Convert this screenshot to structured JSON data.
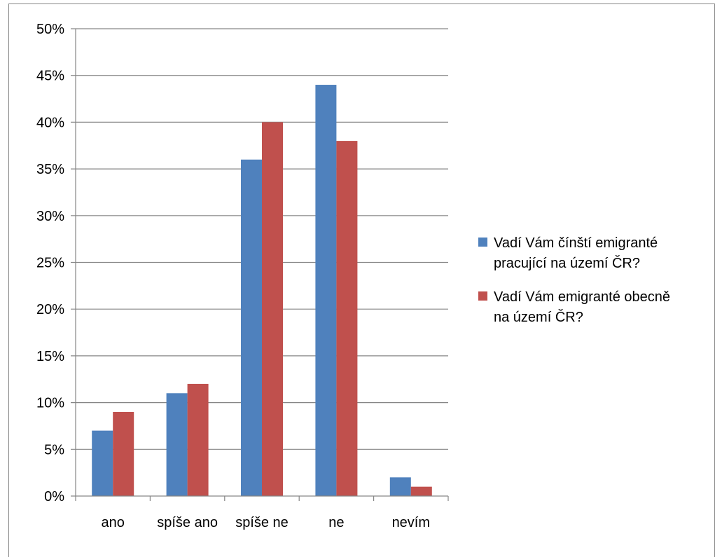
{
  "chart_data": {
    "type": "bar",
    "categories": [
      "ano",
      "spíše ano",
      "spíše ne",
      "ne",
      "nevím"
    ],
    "series": [
      {
        "name": "Vadí Vám čínští emigranté pracující na území ČR?",
        "name_lines": [
          "Vadí Vám čínští emigranté",
          "pracující na území ČR?"
        ],
        "color": "#4F81BD",
        "values": [
          7,
          11,
          36,
          44,
          2
        ]
      },
      {
        "name": "Vadí Vám emigranté obecně na území ČR?",
        "name_lines": [
          "Vadí Vám emigranté obecně",
          "na území ČR?"
        ],
        "color": "#C0504D",
        "values": [
          9,
          12,
          40,
          38,
          1
        ]
      }
    ],
    "ylim": [
      0,
      50
    ],
    "ytick_step": 5,
    "ytick_suffix": "%",
    "grid": true,
    "legend_position": "right"
  }
}
